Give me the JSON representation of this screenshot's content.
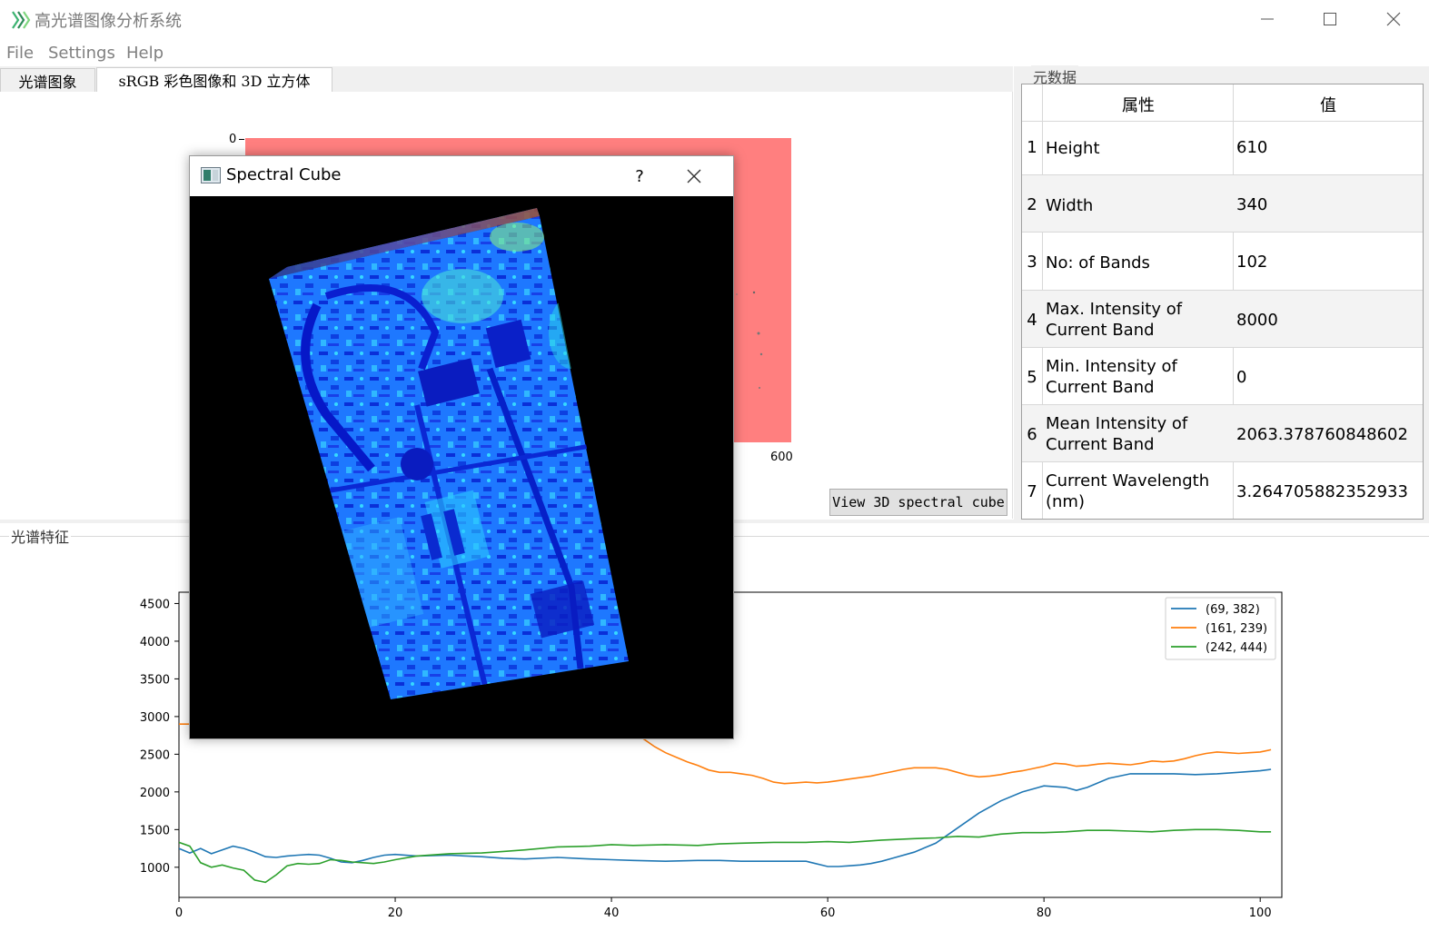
{
  "window": {
    "title": "高光谱图像分析系统",
    "app_icon": "app-logo-icon"
  },
  "menu": [
    "File",
    "Settings",
    "Help"
  ],
  "tabs": [
    "光谱图象",
    "sRGB 彩色图像和 3D 立方体"
  ],
  "image_view": {
    "tick_top": "0",
    "tick_bottom": "600",
    "fill_color": "#ff7f7f"
  },
  "view3d_button": "View 3D spectral cube",
  "metadata": {
    "group_title": "元数据",
    "headers": [
      "属性",
      "值"
    ],
    "rows": [
      {
        "idx": "1",
        "prop": "Height",
        "val": "610"
      },
      {
        "idx": "2",
        "prop": "Width",
        "val": "340"
      },
      {
        "idx": "3",
        "prop": "No: of Bands",
        "val": "102"
      },
      {
        "idx": "4",
        "prop": "Max. Intensity of Current Band",
        "val": "8000"
      },
      {
        "idx": "5",
        "prop": "Min. Intensity of Current Band",
        "val": "0"
      },
      {
        "idx": "6",
        "prop": "Mean Intensity of Current Band",
        "val": "2063.378760848602"
      },
      {
        "idx": "7",
        "prop": "Current Wavelength (nm)",
        "val": "3.264705882352933"
      }
    ]
  },
  "spectral_group_title": "光谱特征",
  "dialog": {
    "title": "Spectral Cube",
    "help_label": "?",
    "icon": "window-icon"
  },
  "chart_data": {
    "type": "line",
    "xlim": [
      0,
      102
    ],
    "ylim": [
      600,
      4650
    ],
    "xticks": [
      "0",
      "20",
      "40",
      "60",
      "80",
      "100"
    ],
    "yticks": [
      "1000",
      "1500",
      "2000",
      "2500",
      "3000",
      "3500",
      "4000",
      "4500"
    ],
    "legend_position": "top-right",
    "colors": [
      "#1f77b4",
      "#ff7f0e",
      "#2ca02c"
    ],
    "series": [
      {
        "name": "(69, 382)",
        "color": "#1f77b4",
        "x": [
          0,
          1,
          2,
          3,
          4,
          5,
          6,
          7,
          8,
          9,
          10,
          11,
          12,
          13,
          14,
          15,
          16,
          17,
          18,
          19,
          20,
          22,
          25,
          28,
          30,
          32,
          35,
          38,
          40,
          42,
          45,
          48,
          50,
          52,
          55,
          58,
          60,
          61,
          62,
          63,
          64,
          65,
          66,
          68,
          70,
          72,
          74,
          76,
          78,
          80,
          82,
          83,
          84,
          86,
          88,
          90,
          92,
          94,
          96,
          98,
          100,
          101
        ],
        "y": [
          1250,
          1190,
          1250,
          1180,
          1230,
          1280,
          1250,
          1200,
          1140,
          1130,
          1150,
          1160,
          1170,
          1160,
          1120,
          1070,
          1060,
          1090,
          1130,
          1160,
          1170,
          1150,
          1160,
          1140,
          1120,
          1110,
          1130,
          1110,
          1100,
          1090,
          1080,
          1090,
          1090,
          1080,
          1080,
          1080,
          1010,
          1010,
          1020,
          1030,
          1050,
          1080,
          1120,
          1200,
          1320,
          1520,
          1720,
          1880,
          2000,
          2080,
          2060,
          2020,
          2060,
          2180,
          2240,
          2240,
          2240,
          2230,
          2240,
          2260,
          2280,
          2300
        ]
      },
      {
        "name": "(161, 239)",
        "color": "#ff7f0e",
        "x": [
          0,
          1,
          2,
          3,
          4,
          5,
          6,
          7,
          8,
          9,
          10,
          11,
          12,
          13,
          14,
          15,
          16,
          17,
          18,
          19,
          20,
          21,
          22,
          24,
          26,
          28,
          30,
          32,
          34,
          36,
          38,
          40,
          41,
          42,
          43,
          44,
          45,
          46,
          47,
          48,
          49,
          50,
          51,
          52,
          53,
          54,
          55,
          56,
          57,
          58,
          59,
          60,
          61,
          62,
          63,
          64,
          65,
          66,
          67,
          68,
          69,
          70,
          71,
          72,
          73,
          74,
          75,
          76,
          77,
          78,
          79,
          80,
          81,
          82,
          83,
          84,
          85,
          86,
          87,
          88,
          89,
          90,
          91,
          92,
          93,
          94,
          95,
          96,
          97,
          98,
          99,
          100,
          101
        ],
        "y": [
          2900,
          2900,
          2910,
          2920,
          2930,
          2940,
          2950,
          2960,
          2960,
          2970,
          2980,
          2990,
          3000,
          3010,
          3020,
          3020,
          3030,
          3040,
          3050,
          3060,
          3060,
          3070,
          3070,
          3060,
          3050,
          3040,
          3020,
          3000,
          2980,
          2960,
          2940,
          2900,
          2860,
          2800,
          2700,
          2600,
          2520,
          2460,
          2400,
          2350,
          2290,
          2260,
          2260,
          2240,
          2220,
          2180,
          2130,
          2110,
          2120,
          2130,
          2120,
          2130,
          2150,
          2170,
          2190,
          2210,
          2240,
          2270,
          2300,
          2320,
          2320,
          2320,
          2300,
          2260,
          2220,
          2200,
          2210,
          2230,
          2260,
          2280,
          2310,
          2340,
          2380,
          2370,
          2340,
          2350,
          2370,
          2380,
          2370,
          2360,
          2380,
          2410,
          2400,
          2410,
          2440,
          2480,
          2510,
          2530,
          2520,
          2510,
          2520,
          2530,
          2560
        ]
      },
      {
        "name": "(242, 444)",
        "color": "#2ca02c",
        "x": [
          0,
          1,
          2,
          3,
          4,
          5,
          6,
          7,
          8,
          9,
          10,
          11,
          12,
          13,
          14,
          15,
          16,
          17,
          18,
          19,
          20,
          22,
          25,
          28,
          30,
          32,
          35,
          38,
          40,
          42,
          45,
          48,
          50,
          52,
          55,
          58,
          60,
          62,
          65,
          68,
          70,
          72,
          74,
          76,
          78,
          80,
          82,
          84,
          86,
          88,
          90,
          92,
          94,
          96,
          98,
          100,
          101
        ],
        "y": [
          1330,
          1280,
          1060,
          1000,
          1030,
          990,
          960,
          830,
          800,
          900,
          1020,
          1050,
          1040,
          1050,
          1100,
          1090,
          1070,
          1060,
          1050,
          1070,
          1100,
          1150,
          1180,
          1190,
          1210,
          1230,
          1270,
          1280,
          1300,
          1290,
          1300,
          1290,
          1310,
          1320,
          1330,
          1330,
          1340,
          1330,
          1360,
          1380,
          1390,
          1410,
          1400,
          1440,
          1460,
          1460,
          1470,
          1490,
          1490,
          1480,
          1470,
          1490,
          1500,
          1500,
          1490,
          1470,
          1470
        ]
      }
    ]
  }
}
